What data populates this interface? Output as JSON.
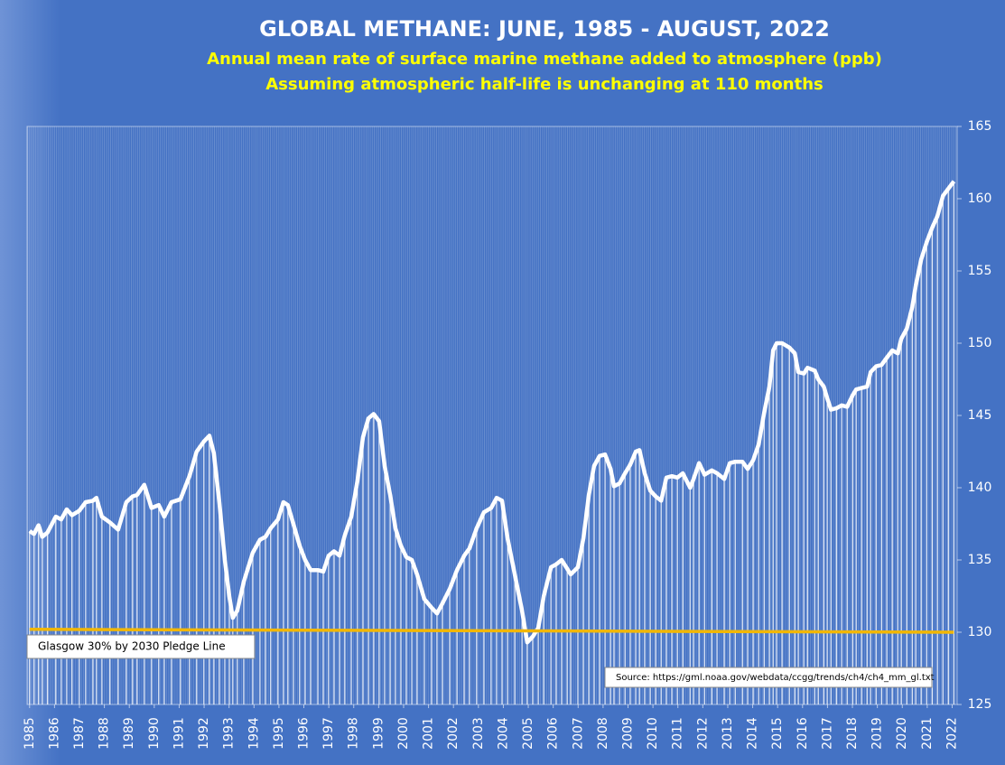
{
  "chart_data": {
    "type": "line",
    "title": "GLOBAL METHANE: JUNE, 1985 - AUGUST, 2022",
    "subtitle": [
      "Annual mean rate of surface marine methane added to atmosphere (ppb)",
      "Assuming atmospheric half-life is unchanging at 110 months"
    ],
    "annotations": [
      "Source: https://gml.noaa.gov/webdata/ccgg/trends/ch4/ch4_mm_gl.txt"
    ],
    "xlim": [
      1984.9,
      2022.2
    ],
    "xticks": [
      1985,
      1986,
      1987,
      1988,
      1989,
      1990,
      1991,
      1992,
      1993,
      1994,
      1995,
      1996,
      1997,
      1998,
      1999,
      2000,
      2001,
      2002,
      2003,
      2004,
      2005,
      2006,
      2007,
      2008,
      2009,
      2010,
      2011,
      2012,
      2013,
      2014,
      2015,
      2016,
      2017,
      2018,
      2019,
      2020,
      2021,
      2022
    ],
    "ylim": [
      125,
      165
    ],
    "yticks": [
      125,
      130,
      135,
      140,
      145,
      150,
      155,
      160,
      165
    ],
    "series": [
      {
        "color": "#ffffff",
        "drop_lines": true,
        "x": [
          1985.0,
          1985.18,
          1985.36,
          1985.51,
          1985.72,
          1986.05,
          1986.27,
          1986.49,
          1986.7,
          1986.99,
          1987.25,
          1987.54,
          1987.68,
          1987.9,
          1988.22,
          1988.55,
          1988.88,
          1989.13,
          1989.31,
          1989.6,
          1989.89,
          1990.18,
          1990.4,
          1990.69,
          1991.05,
          1991.41,
          1991.7,
          1991.99,
          1992.21,
          1992.39,
          1992.61,
          1992.83,
          1993.01,
          1993.15,
          1993.33,
          1993.59,
          1993.95,
          1994.24,
          1994.46,
          1994.67,
          1994.96,
          1995.18,
          1995.36,
          1995.58,
          1995.83,
          1996.05,
          1996.27,
          1996.56,
          1996.78,
          1996.99,
          1997.21,
          1997.43,
          1997.64,
          1997.9,
          1998.15,
          1998.37,
          1998.59,
          1998.8,
          1999.02,
          1999.24,
          1999.46,
          1999.67,
          1999.89,
          2000.11,
          2000.33,
          2000.54,
          2000.83,
          2001.12,
          2001.34,
          2001.56,
          2001.85,
          2002.14,
          2002.43,
          2002.64,
          2002.93,
          2003.22,
          2003.51,
          2003.73,
          2003.95,
          2004.17,
          2004.46,
          2004.75,
          2004.96,
          2005.18,
          2005.4,
          2005.62,
          2005.91,
          2006.12,
          2006.34,
          2006.56,
          2006.7,
          2006.99,
          2007.21,
          2007.43,
          2007.64,
          2007.86,
          2008.08,
          2008.3,
          2008.44,
          2008.66,
          2008.88,
          2009.09,
          2009.31,
          2009.46,
          2009.67,
          2009.89,
          2010.11,
          2010.33,
          2010.54,
          2010.76,
          2010.98,
          2011.2,
          2011.49,
          2011.63,
          2011.85,
          2012.07,
          2012.36,
          2012.57,
          2012.86,
          2013.08,
          2013.3,
          2013.59,
          2013.8,
          2014.02,
          2014.24,
          2014.46,
          2014.67,
          2014.82,
          2014.96,
          2015.18,
          2015.47,
          2015.69,
          2015.83,
          2016.05,
          2016.2,
          2016.49,
          2016.63,
          2016.85,
          2016.99,
          2017.14,
          2017.36,
          2017.57,
          2017.79,
          2018.01,
          2018.15,
          2018.37,
          2018.59,
          2018.73,
          2018.95,
          2019.17,
          2019.38,
          2019.6,
          2019.82,
          2019.96,
          2020.18,
          2020.4,
          2020.54,
          2020.76,
          2020.98,
          2021.2,
          2021.41,
          2021.63,
          2021.85,
          2022.07
        ],
        "values": [
          137.0,
          136.8,
          137.4,
          136.6,
          136.9,
          138.0,
          137.8,
          138.5,
          138.1,
          138.4,
          139.0,
          139.1,
          139.3,
          138.0,
          137.6,
          137.1,
          139.0,
          139.4,
          139.5,
          140.2,
          138.6,
          138.8,
          138.0,
          139.0,
          139.2,
          140.8,
          142.5,
          143.2,
          143.6,
          142.4,
          139.0,
          135.0,
          132.5,
          131.0,
          131.5,
          133.5,
          135.5,
          136.4,
          136.6,
          137.2,
          137.8,
          139.0,
          138.8,
          137.5,
          136.0,
          135.0,
          134.3,
          134.3,
          134.2,
          135.3,
          135.6,
          135.3,
          136.7,
          138.0,
          140.5,
          143.5,
          144.8,
          145.1,
          144.6,
          141.5,
          139.5,
          137.2,
          136.0,
          135.2,
          135.0,
          134.0,
          132.3,
          131.7,
          131.3,
          132.0,
          133.0,
          134.3,
          135.3,
          135.8,
          137.2,
          138.3,
          138.6,
          139.3,
          139.1,
          136.5,
          134.0,
          131.5,
          129.3,
          129.7,
          130.3,
          132.5,
          134.5,
          134.7,
          135.0,
          134.4,
          134.0,
          134.5,
          136.5,
          139.5,
          141.5,
          142.2,
          142.3,
          141.3,
          140.1,
          140.3,
          141.0,
          141.6,
          142.5,
          142.6,
          141.0,
          139.8,
          139.4,
          139.1,
          140.7,
          140.8,
          140.7,
          141.0,
          140.0,
          140.6,
          141.7,
          140.9,
          141.2,
          141.0,
          140.6,
          141.7,
          141.8,
          141.8,
          141.3,
          141.9,
          143.0,
          145.2,
          147.0,
          149.5,
          150.0,
          150.0,
          149.7,
          149.3,
          148.0,
          147.9,
          148.3,
          148.1,
          147.5,
          147.0,
          146.2,
          145.4,
          145.5,
          145.7,
          145.6,
          146.4,
          146.8,
          146.9,
          147.0,
          148.0,
          148.4,
          148.5,
          149.0,
          149.5,
          149.3,
          150.3,
          151.0,
          152.5,
          154.0,
          155.8,
          157.0,
          158.0,
          158.8,
          160.2,
          160.7,
          161.2
        ]
      },
      {
        "name": "Glasgow 30% by 2030 Pledge Line",
        "color": "#f2b705",
        "x": [
          1985.0,
          2022.07
        ],
        "values": [
          130.2,
          130.0
        ]
      }
    ]
  }
}
